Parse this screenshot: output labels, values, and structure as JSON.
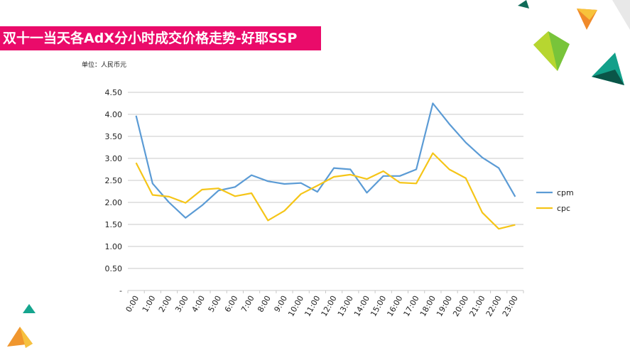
{
  "slide": {
    "title": "双十一当天各AdX分小时成交价格走势-好耶SSP",
    "unit": "单位：人民币元"
  },
  "colors": {
    "title_bg": "#ea0b6a",
    "cpm": "#5b9bd5",
    "cpc": "#f5c518",
    "grid": "#c8c8c8"
  },
  "chart_data": {
    "type": "line",
    "categories": [
      "0:00",
      "1:00",
      "2:00",
      "3:00",
      "4:00",
      "5:00",
      "6:00",
      "7:00",
      "8:00",
      "9:00",
      "10:00",
      "11:00",
      "12:00",
      "13:00",
      "14:00",
      "15:00",
      "16:00",
      "17:00",
      "18:00",
      "19:00",
      "20:00",
      "21:00",
      "22:00",
      "23:00"
    ],
    "series": [
      {
        "name": "cpm",
        "color": "#5b9bd5",
        "values": [
          3.97,
          2.43,
          2.0,
          1.65,
          1.93,
          2.27,
          2.35,
          2.62,
          2.48,
          2.42,
          2.44,
          2.24,
          2.78,
          2.75,
          2.22,
          2.6,
          2.6,
          2.75,
          4.25,
          3.78,
          3.36,
          3.02,
          2.78,
          2.13
        ]
      },
      {
        "name": "cpc",
        "color": "#f5c518",
        "values": [
          2.9,
          2.17,
          2.13,
          1.99,
          2.29,
          2.32,
          2.14,
          2.21,
          1.59,
          1.81,
          2.19,
          2.38,
          2.58,
          2.63,
          2.53,
          2.71,
          2.45,
          2.43,
          3.12,
          2.75,
          2.55,
          1.77,
          1.4,
          1.49
        ]
      }
    ],
    "y_ticks": [
      "4.50",
      "4.00",
      "3.50",
      "3.00",
      "2.50",
      "2.00",
      "1.50",
      "1.00",
      "0.50",
      "-"
    ],
    "ylim": [
      0,
      4.5
    ],
    "grid": true,
    "legend_position": "right"
  }
}
